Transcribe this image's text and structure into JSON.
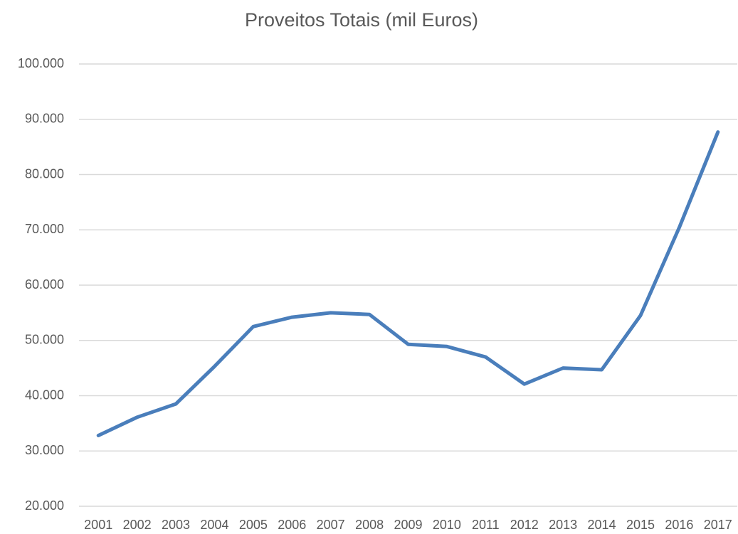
{
  "chart_data": {
    "type": "line",
    "title": "Proveitos Totais (mil Euros)",
    "categories": [
      "2001",
      "2002",
      "2003",
      "2004",
      "2005",
      "2006",
      "2007",
      "2008",
      "2009",
      "2010",
      "2011",
      "2012",
      "2013",
      "2014",
      "2015",
      "2016",
      "2017"
    ],
    "series": [
      {
        "name": "Proveitos Totais",
        "color": "#4a7ebb",
        "values": [
          32800,
          36100,
          38500,
          45300,
          52500,
          54200,
          55000,
          54700,
          49300,
          48900,
          47000,
          42100,
          45000,
          44700,
          54500,
          70400,
          87700
        ]
      }
    ],
    "ylim": [
      20000,
      100000
    ],
    "yticks": [
      {
        "value": 20000,
        "label": "20.000"
      },
      {
        "value": 30000,
        "label": "30.000"
      },
      {
        "value": 40000,
        "label": "40.000"
      },
      {
        "value": 50000,
        "label": "50.000"
      },
      {
        "value": 60000,
        "label": "60.000"
      },
      {
        "value": 70000,
        "label": "70.000"
      },
      {
        "value": 80000,
        "label": "80.000"
      },
      {
        "value": 90000,
        "label": "90.000"
      },
      {
        "value": 100000,
        "label": "100.000"
      }
    ],
    "grid": true
  }
}
